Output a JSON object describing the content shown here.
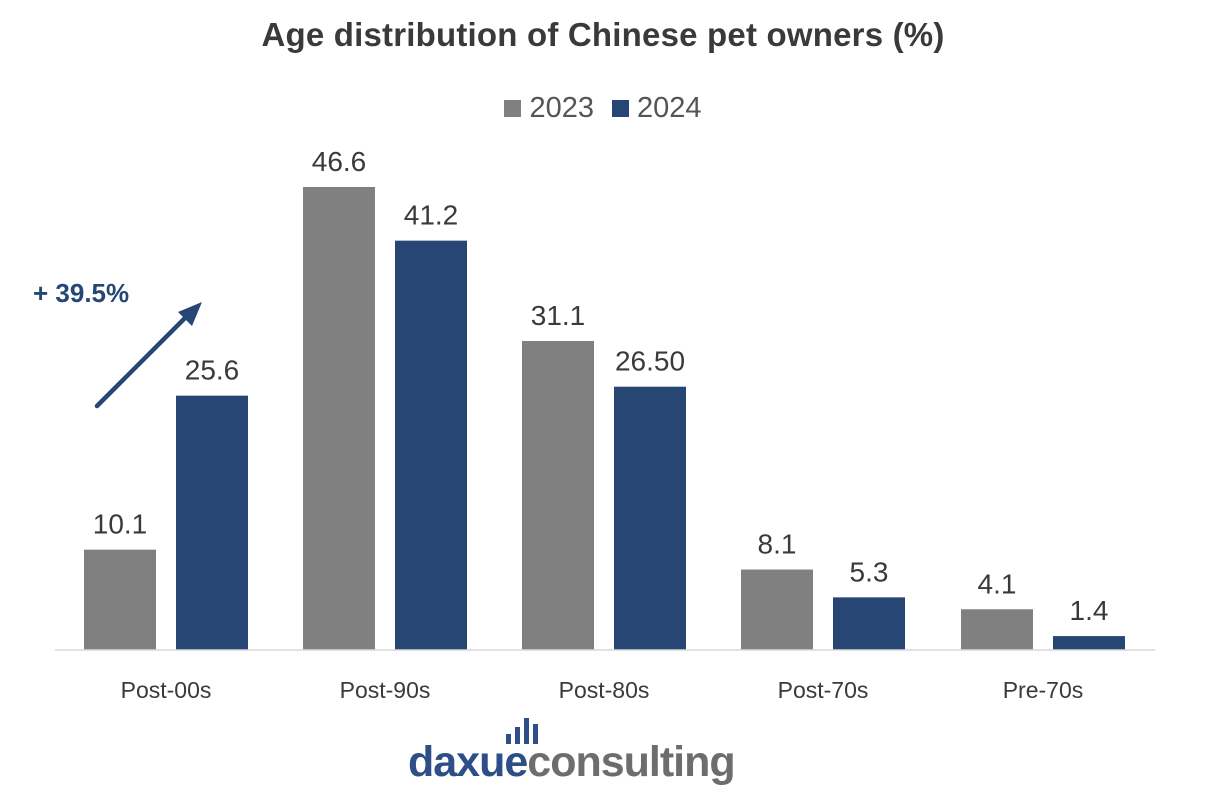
{
  "chart_data": {
    "type": "bar",
    "title": "Age distribution of Chinese pet owners (%)",
    "categories": [
      "Post-00s",
      "Post-90s",
      "Post-80s",
      "Post-70s",
      "Pre-70s"
    ],
    "series": [
      {
        "name": "2023",
        "color": "#808080",
        "values": [
          10.1,
          46.6,
          31.1,
          8.1,
          4.1
        ],
        "labels": [
          "10.1",
          "46.6",
          "31.1",
          "8.1",
          "4.1"
        ]
      },
      {
        "name": "2024",
        "color": "#274674",
        "values": [
          25.6,
          41.2,
          26.5,
          5.3,
          1.4
        ],
        "labels": [
          "25.6",
          "41.2",
          "26.50",
          "5.3",
          "1.4"
        ]
      }
    ],
    "ylim": [
      0,
      46.6
    ],
    "grid": false,
    "legend_position": "top-center",
    "annotation": {
      "text": "+ 39.5%",
      "color": "#264776"
    }
  },
  "logo": {
    "part1": "daxue",
    "part2": "consulting"
  }
}
